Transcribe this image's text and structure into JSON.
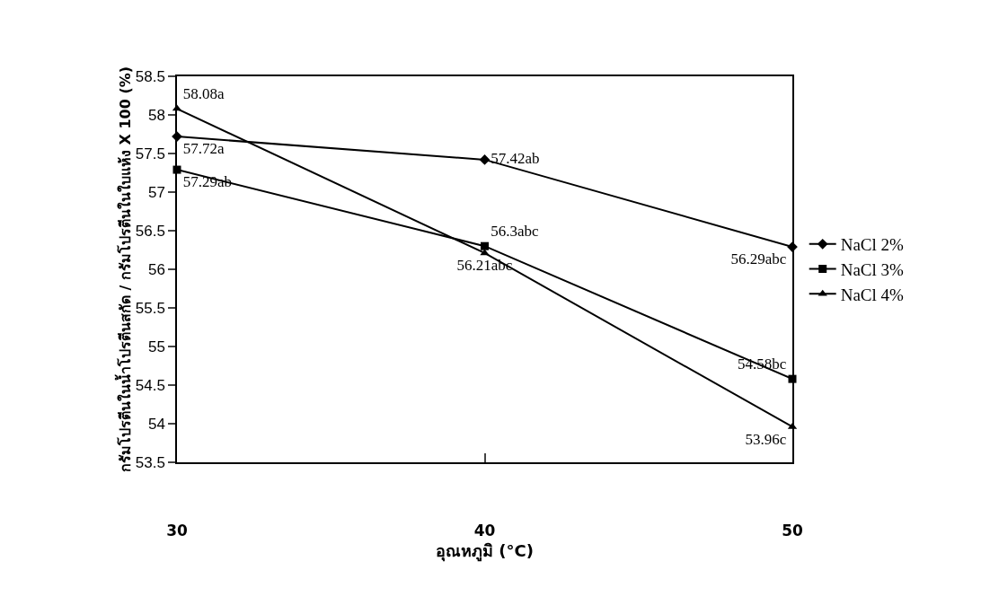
{
  "chart_data": {
    "type": "line",
    "xlabel": "อุณหภูมิ (°C)",
    "ylabel": "กรัมโปรตีนในน้ำโปรตีนสกัด / กรัมโปรตีนในใบแห้ง X 100 (%)",
    "x": [
      30,
      40,
      50
    ],
    "xlim": [
      30,
      50
    ],
    "xticks": [
      30,
      40,
      50
    ],
    "ylim": [
      53.5,
      58.5
    ],
    "yticks": [
      53.5,
      54,
      54.5,
      55,
      55.5,
      56,
      56.5,
      57,
      57.5,
      58,
      58.5
    ],
    "grid": false,
    "legend": "right",
    "series": [
      {
        "name": "NaCl 2%",
        "color": "#000000",
        "marker": "diamond",
        "values": [
          57.72,
          57.42,
          56.29
        ],
        "value_labels": [
          "57.72a",
          "57.42ab",
          "56.29abc"
        ]
      },
      {
        "name": "NaCl 3%",
        "color": "#000000",
        "marker": "square",
        "values": [
          57.29,
          56.3,
          54.58
        ],
        "value_labels": [
          "57.29ab",
          "56.3abc",
          "54.58bc"
        ]
      },
      {
        "name": "NaCl 4%",
        "color": "#000000",
        "marker": "triangle",
        "values": [
          58.08,
          56.21,
          53.96
        ],
        "value_labels": [
          "58.08a",
          "56.21abc",
          "53.96c"
        ]
      }
    ]
  }
}
